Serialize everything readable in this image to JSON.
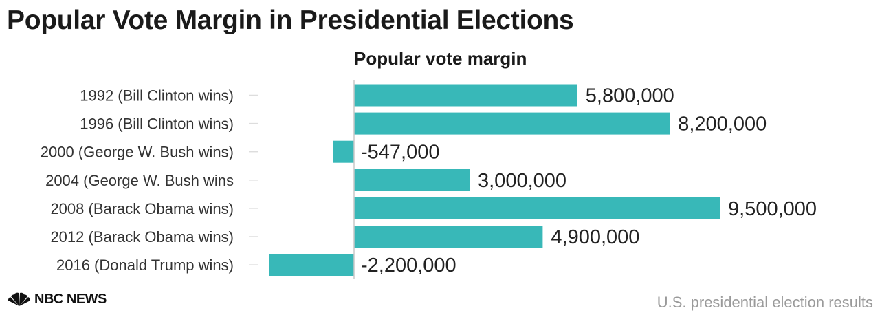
{
  "header": {
    "title": "Popular Vote Margin in Presidential Elections",
    "subtitle": "Popular vote margin"
  },
  "footer": {
    "brand": "NBC NEWS",
    "source": "U.S. presidential election results",
    "logo_icon": "peacock-icon"
  },
  "colors": {
    "bar": "#38b8b8",
    "axis": "#c8c8c8",
    "tick": "#dddddd",
    "label": "#333333",
    "value": "#222222"
  },
  "chart_data": {
    "type": "bar",
    "orientation": "horizontal",
    "title": "Popular Vote Margin in Presidential Elections",
    "subtitle": "Popular vote margin",
    "categories": [
      "1992 (Bill Clinton wins)",
      "1996 (Bill Clinton wins)",
      "2000 (George W. Bush wins)",
      "2004 (George W. Bush wins",
      "2008 (Barack Obama wins)",
      "2012 (Barack Obama wins)",
      "2016 (Donald Trump wins)"
    ],
    "values": [
      5800000,
      8200000,
      -547000,
      3000000,
      9500000,
      4900000,
      -2200000
    ],
    "value_labels": [
      "5,800,000",
      "8,200,000",
      "-547,000",
      "3,000,000",
      "9,500,000",
      "4,900,000",
      "-2,200,000"
    ],
    "xlim": [
      -2200000,
      9500000
    ],
    "grid": false,
    "legend": "none"
  }
}
